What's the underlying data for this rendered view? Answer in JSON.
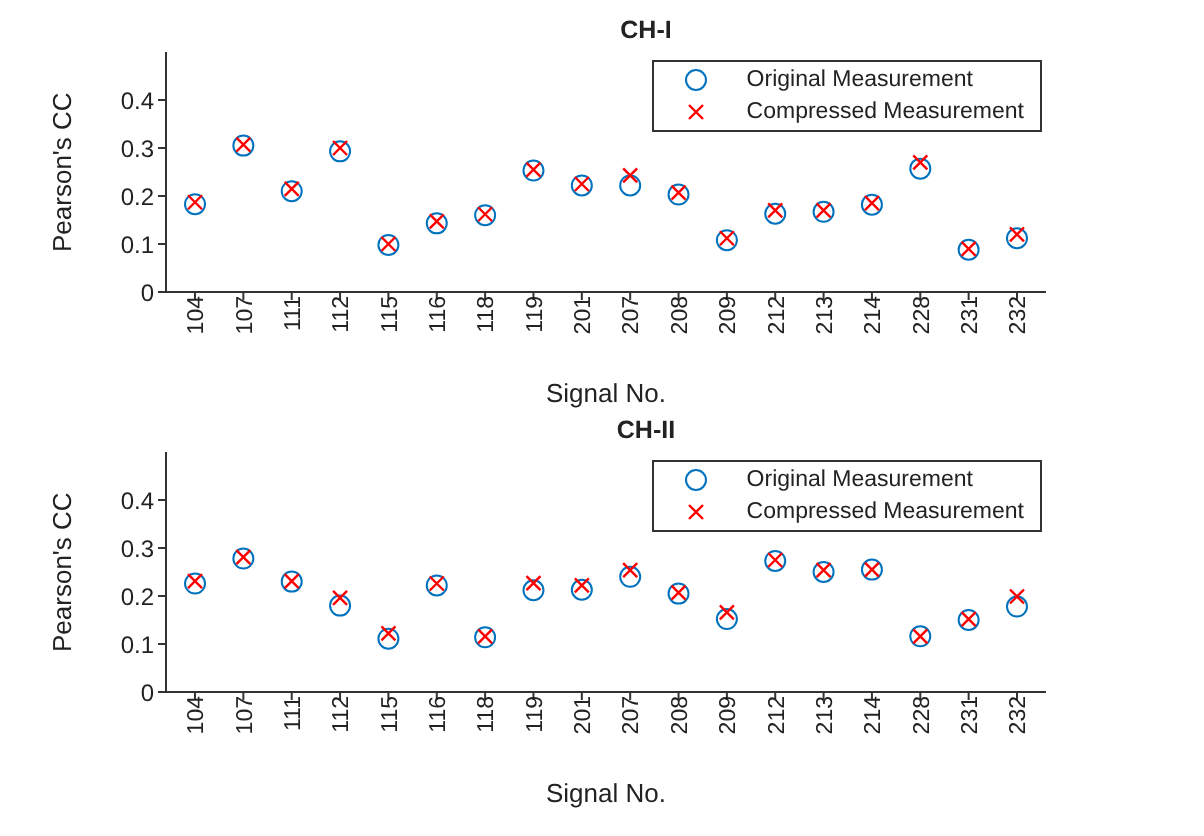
{
  "chart_data": [
    {
      "type": "scatter",
      "title": "CH-I",
      "xlabel": "Signal No.",
      "ylabel": "Pearson's CC",
      "categories": [
        "104",
        "107",
        "111",
        "112",
        "115",
        "116",
        "118",
        "119",
        "201",
        "207",
        "208",
        "209",
        "212",
        "213",
        "214",
        "228",
        "231",
        "232"
      ],
      "series": [
        {
          "name": "Original Measurement",
          "color": "#0072bd",
          "marker": "circle",
          "values": [
            0.183,
            0.305,
            0.21,
            0.293,
            0.098,
            0.143,
            0.16,
            0.253,
            0.222,
            0.222,
            0.203,
            0.108,
            0.163,
            0.167,
            0.182,
            0.257,
            0.088,
            0.112
          ]
        },
        {
          "name": "Compressed Measurement",
          "color": "#ff0000",
          "marker": "cross",
          "values": [
            0.187,
            0.307,
            0.215,
            0.3,
            0.1,
            0.147,
            0.162,
            0.255,
            0.225,
            0.243,
            0.207,
            0.112,
            0.17,
            0.17,
            0.185,
            0.27,
            0.09,
            0.12
          ]
        }
      ],
      "ylim": [
        0,
        0.5
      ],
      "yticks": [
        0,
        0.1,
        0.2,
        0.3,
        0.4
      ],
      "grid": false,
      "legend": "top right"
    },
    {
      "type": "scatter",
      "title": "CH-II",
      "xlabel": "Signal No.",
      "ylabel": "Pearson's CC",
      "categories": [
        "104",
        "107",
        "111",
        "112",
        "115",
        "116",
        "118",
        "119",
        "201",
        "207",
        "208",
        "209",
        "212",
        "213",
        "214",
        "228",
        "231",
        "232"
      ],
      "series": [
        {
          "name": "Original Measurement",
          "color": "#0072bd",
          "marker": "circle",
          "values": [
            0.226,
            0.278,
            0.23,
            0.18,
            0.111,
            0.222,
            0.114,
            0.212,
            0.213,
            0.24,
            0.205,
            0.152,
            0.273,
            0.25,
            0.255,
            0.116,
            0.15,
            0.178
          ]
        },
        {
          "name": "Compressed Measurement",
          "color": "#ff0000",
          "marker": "cross",
          "values": [
            0.231,
            0.281,
            0.231,
            0.196,
            0.122,
            0.226,
            0.116,
            0.227,
            0.222,
            0.254,
            0.207,
            0.166,
            0.275,
            0.254,
            0.255,
            0.116,
            0.152,
            0.199
          ]
        }
      ],
      "ylim": [
        0,
        0.5
      ],
      "yticks": [
        0,
        0.1,
        0.2,
        0.3,
        0.4
      ],
      "grid": false,
      "legend": "top right"
    }
  ]
}
